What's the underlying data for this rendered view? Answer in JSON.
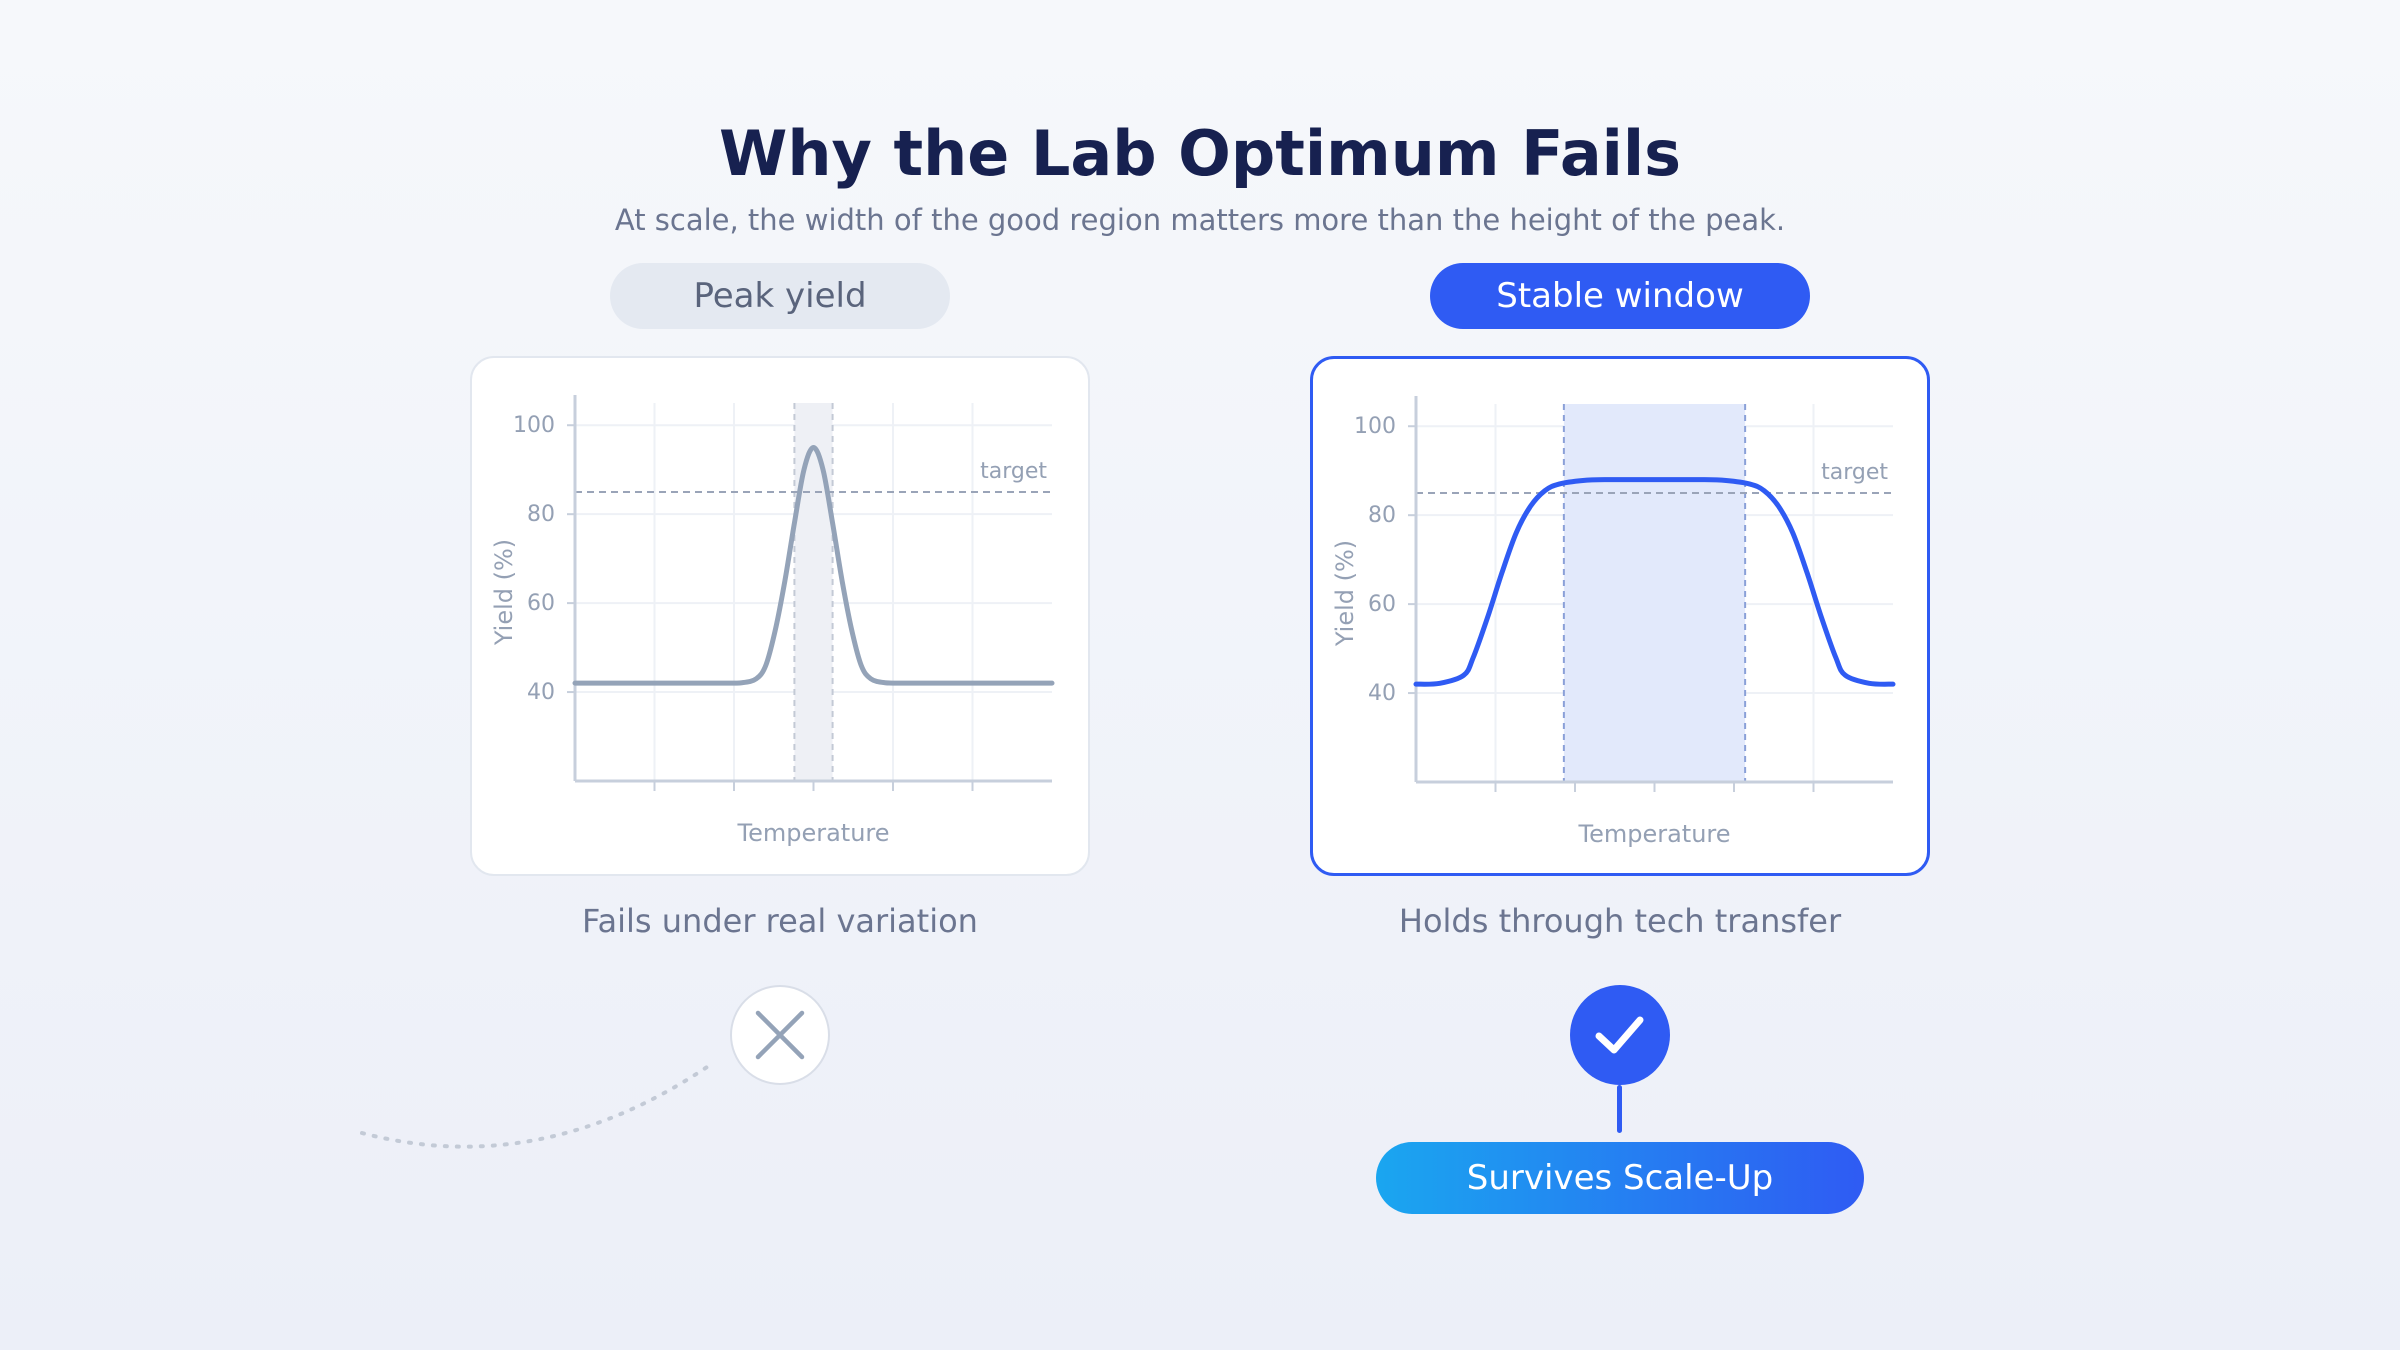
{
  "header": {
    "title": "Why the Lab Optimum Fails",
    "subtitle": "At scale, the width of the good region matters more than the height of the peak."
  },
  "left_panel": {
    "pill": "Peak yield",
    "caption": "Fails under real variation",
    "badge_icon": "x-icon"
  },
  "right_panel": {
    "pill": "Stable window",
    "caption": "Holds through tech transfer",
    "badge_icon": "check-icon",
    "result": "Survives Scale-Up"
  },
  "colors": {
    "accent": "#2f5bf3",
    "muted_curve": "#94a3b8",
    "title": "#172150"
  },
  "chart_data": [
    {
      "type": "line",
      "xlabel": "Temperature",
      "ylabel": "Yield (%)",
      "yticks": [
        40,
        60,
        80,
        100
      ],
      "ylim": [
        20,
        105
      ],
      "target_label": "target",
      "target_value": 85,
      "highlight_band": [
        0.46,
        0.54
      ],
      "series": [
        {
          "x": [
            0,
            0.1,
            0.2,
            0.3,
            0.35,
            0.38,
            0.4,
            0.42,
            0.44,
            0.46,
            0.48,
            0.5,
            0.52,
            0.54,
            0.56,
            0.58,
            0.6,
            0.62,
            0.65,
            0.7,
            0.8,
            0.9,
            1.0
          ],
          "y": [
            42,
            42,
            42,
            42,
            42.1,
            43,
            46,
            54,
            65,
            78,
            90,
            95,
            90,
            78,
            65,
            54,
            46,
            43,
            42.1,
            42,
            42,
            42,
            42
          ]
        }
      ]
    },
    {
      "type": "line",
      "xlabel": "Temperature",
      "ylabel": "Yield (%)",
      "yticks": [
        40,
        60,
        80,
        100
      ],
      "ylim": [
        20,
        105
      ],
      "target_label": "target",
      "target_value": 85,
      "highlight_band": [
        0.31,
        0.69
      ],
      "series": [
        {
          "x": [
            0,
            0.05,
            0.1,
            0.12,
            0.15,
            0.18,
            0.21,
            0.24,
            0.27,
            0.3,
            0.35,
            0.4,
            0.5,
            0.6,
            0.65,
            0.7,
            0.73,
            0.76,
            0.79,
            0.82,
            0.85,
            0.88,
            0.9,
            0.95,
            1.0
          ],
          "y": [
            42,
            42.2,
            44,
            48,
            57,
            67,
            76,
            82,
            85.5,
            87,
            87.8,
            88,
            88,
            88,
            87.8,
            87,
            85.5,
            82,
            76,
            67,
            57,
            48,
            44,
            42.2,
            42
          ]
        }
      ]
    }
  ]
}
